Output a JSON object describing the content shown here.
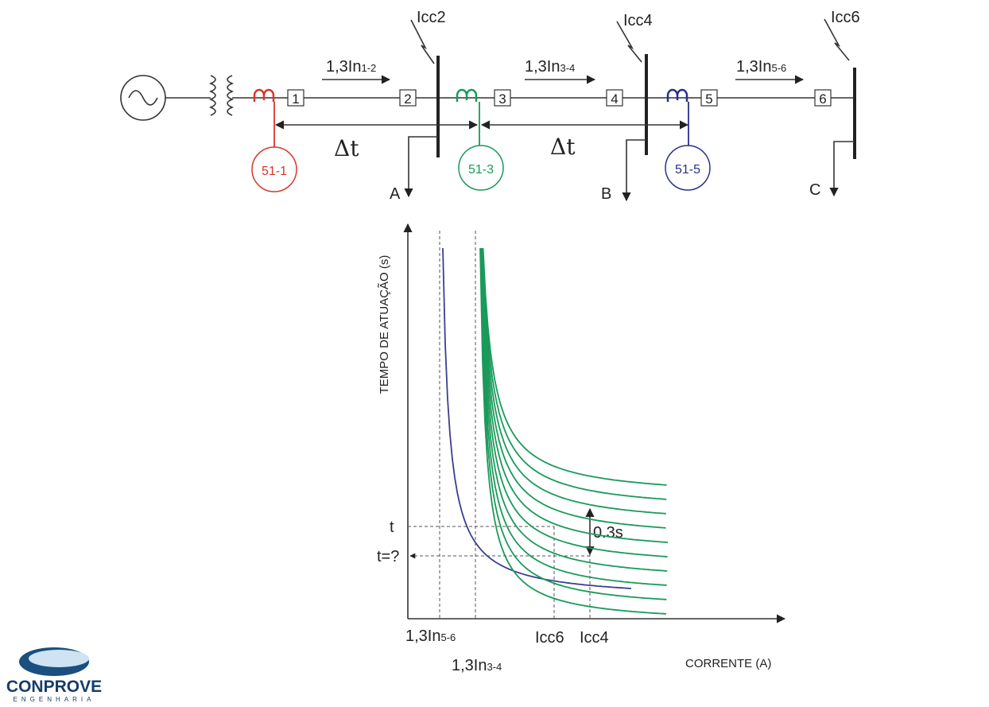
{
  "faults": [
    "Icc2",
    "Icc4",
    "Icc6"
  ],
  "currents": [
    {
      "main": "1,3In",
      "sub": "1-2"
    },
    {
      "main": "1,3In",
      "sub": "3-4"
    },
    {
      "main": "1,3In",
      "sub": "5-6"
    }
  ],
  "breakers": [
    "1",
    "2",
    "3",
    "4",
    "5",
    "6"
  ],
  "delta_t": [
    "Δt",
    "Δt"
  ],
  "relays": [
    "51-1",
    "51-3",
    "51-5"
  ],
  "loads": [
    "A",
    "B",
    "C"
  ],
  "graph": {
    "y_label": "TEMPO DE ATUAÇÃO (s)",
    "x_label": "CORRENTE (A)",
    "t_labels": [
      "t",
      "t=?"
    ],
    "interval": "0.3s",
    "pickups": [
      {
        "main": "1,3In",
        "sub": "5-6"
      },
      {
        "main": "1,3In",
        "sub": "3-4"
      }
    ],
    "faults": [
      "Icc6",
      "Icc4"
    ]
  },
  "logo": {
    "name": "CONPROVE",
    "tagline": "ENGENHARIA"
  }
}
